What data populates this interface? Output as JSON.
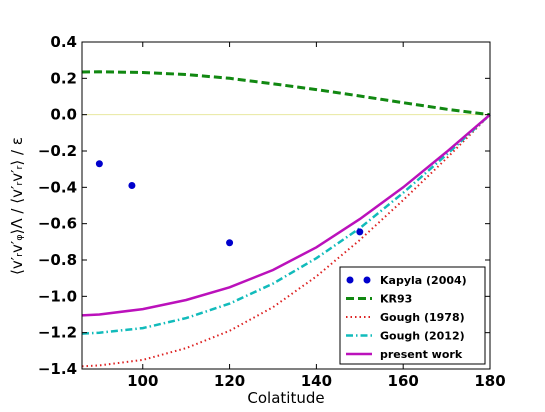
{
  "chart_data": {
    "type": "line",
    "xlabel": "Colatitude",
    "ylabel": "⟨v′ᵣv′ᵩ⟩Λ / ⟨v′ᵣv′ᵣ⟩ / ε",
    "xlim": [
      86,
      180
    ],
    "ylim": [
      -1.4,
      0.4
    ],
    "xticks": [
      100,
      120,
      140,
      160,
      180
    ],
    "xtick_labels": [
      "100",
      "120",
      "140",
      "160",
      "180"
    ],
    "yticks": [
      0.4,
      0.2,
      0.0,
      -0.2,
      -0.4,
      -0.6,
      -0.8,
      -1.0,
      -1.2,
      -1.4
    ],
    "ytick_labels": [
      "0.4",
      "0.2",
      "0.0",
      "−0.2",
      "−0.4",
      "−0.6",
      "−0.8",
      "−1.0",
      "−1.2",
      "−1.4"
    ],
    "zero_line": true,
    "grid": false,
    "legend_position": "lower-right",
    "series": [
      {
        "name": "Kapyla (2004)",
        "style": "markers",
        "color": "#0000cc",
        "x": [
          90,
          97.5,
          120,
          150
        ],
        "y": [
          -0.27,
          -0.39,
          -0.705,
          -0.645
        ]
      },
      {
        "name": "KR93",
        "style": "dashed",
        "color": "#118811",
        "x": [
          86,
          90,
          100,
          110,
          120,
          130,
          140,
          150,
          160,
          170,
          180
        ],
        "y": [
          0.235,
          0.236,
          0.232,
          0.221,
          0.2,
          0.17,
          0.138,
          0.103,
          0.066,
          0.03,
          0.0
        ]
      },
      {
        "name": "Gough (1978)",
        "style": "dotted",
        "color": "#dd2222",
        "x": [
          86,
          90,
          100,
          110,
          120,
          130,
          140,
          150,
          160,
          170,
          180
        ],
        "y": [
          -1.385,
          -1.38,
          -1.35,
          -1.285,
          -1.19,
          -1.06,
          -0.89,
          -0.69,
          -0.47,
          -0.24,
          0.0
        ]
      },
      {
        "name": "Gough (2012)",
        "style": "dashdot",
        "color": "#11bbbb",
        "x": [
          86,
          90,
          100,
          110,
          120,
          130,
          140,
          150,
          160,
          170,
          180
        ],
        "y": [
          -1.205,
          -1.2,
          -1.175,
          -1.12,
          -1.04,
          -0.93,
          -0.79,
          -0.625,
          -0.43,
          -0.22,
          0.0
        ]
      },
      {
        "name": "present work",
        "style": "solid",
        "color": "#bb11bb",
        "x": [
          86,
          90,
          100,
          110,
          120,
          130,
          140,
          150,
          160,
          170,
          180
        ],
        "y": [
          -1.105,
          -1.1,
          -1.07,
          -1.02,
          -0.95,
          -0.855,
          -0.73,
          -0.575,
          -0.4,
          -0.205,
          0.0
        ]
      }
    ]
  }
}
